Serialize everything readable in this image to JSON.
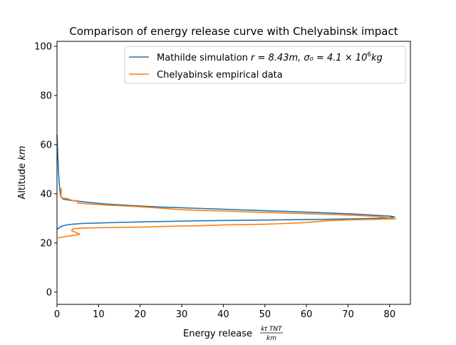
{
  "chart_data": {
    "type": "line",
    "title": "Comparison of energy release curve with Chelyabinsk impact",
    "xlabel": "Energy release",
    "xlabel_unit": {
      "numerator": "kt TNT",
      "denominator": "km"
    },
    "ylabel": "Altitude",
    "ylabel_unit": "km",
    "xlim": [
      0,
      85
    ],
    "ylim": [
      -5,
      102
    ],
    "xticks": [
      "0",
      "10",
      "20",
      "30",
      "40",
      "50",
      "60",
      "70",
      "80"
    ],
    "yticks": [
      "0",
      "20",
      "40",
      "60",
      "80",
      "100"
    ],
    "legend_position": "top-right",
    "series": [
      {
        "name": "Mathilde simulation r = 8.43m, σ₀ = 4.1×10⁶kg",
        "legend_prefix": "Mathilde simulation ",
        "legend_math": "r = 8.43m, σ₀ = 4.1 × 10",
        "legend_exp": "6",
        "legend_suffix": "kg",
        "color": "#1f77b4",
        "points": [
          [
            0.0,
            64
          ],
          [
            0.2,
            55
          ],
          [
            0.4,
            48
          ],
          [
            0.6,
            43
          ],
          [
            0.8,
            40
          ],
          [
            1.0,
            38.5
          ],
          [
            1.5,
            37.8
          ],
          [
            3,
            37.4
          ],
          [
            5,
            37.0
          ],
          [
            8,
            36.4
          ],
          [
            12,
            35.8
          ],
          [
            18,
            35.2
          ],
          [
            25,
            34.6
          ],
          [
            35,
            34.0
          ],
          [
            45,
            33.4
          ],
          [
            55,
            32.8
          ],
          [
            65,
            32.2
          ],
          [
            72,
            31.7
          ],
          [
            77,
            31.2
          ],
          [
            80,
            30.9
          ],
          [
            81.2,
            30.6
          ],
          [
            80,
            30.2
          ],
          [
            75,
            29.9
          ],
          [
            65,
            29.6
          ],
          [
            50,
            29.3
          ],
          [
            35,
            29.0
          ],
          [
            22,
            28.6
          ],
          [
            12,
            28.2
          ],
          [
            6,
            27.9
          ],
          [
            3,
            27.5
          ],
          [
            1.5,
            27.0
          ],
          [
            0.7,
            26.4
          ],
          [
            0.2,
            25.8
          ],
          [
            0.0,
            25.5
          ]
        ]
      },
      {
        "name": "Chelyabinsk empirical data",
        "color": "#ff7f0e",
        "points": [
          [
            1.0,
            42.3
          ],
          [
            1.0,
            40
          ],
          [
            1.0,
            38.5
          ],
          [
            1.5,
            38.2
          ],
          [
            2.5,
            38
          ],
          [
            3.5,
            37.4
          ],
          [
            5,
            36.8
          ],
          [
            5,
            36.2
          ],
          [
            8,
            35.8
          ],
          [
            12,
            35.4
          ],
          [
            18,
            34.9
          ],
          [
            22,
            34.5
          ],
          [
            30,
            33.5
          ],
          [
            35,
            33.2
          ],
          [
            40,
            33.0
          ],
          [
            48,
            32.5
          ],
          [
            58,
            32.0
          ],
          [
            66,
            31.6
          ],
          [
            72,
            31.2
          ],
          [
            77,
            30.8
          ],
          [
            81.5,
            29.8
          ],
          [
            77,
            29.6
          ],
          [
            70,
            29.4
          ],
          [
            65,
            29.0
          ],
          [
            60,
            28.3
          ],
          [
            55,
            27.9
          ],
          [
            50,
            27.6
          ],
          [
            40,
            27.3
          ],
          [
            35,
            27.0
          ],
          [
            28,
            26.8
          ],
          [
            22,
            26.5
          ],
          [
            15,
            26.3
          ],
          [
            10,
            26.2
          ],
          [
            6,
            26.0
          ],
          [
            4,
            25.8
          ],
          [
            3.5,
            25.0
          ],
          [
            5.5,
            23.5
          ],
          [
            3,
            22.8
          ],
          [
            1.5,
            22.4
          ],
          [
            0.2,
            22.0
          ]
        ]
      }
    ]
  }
}
